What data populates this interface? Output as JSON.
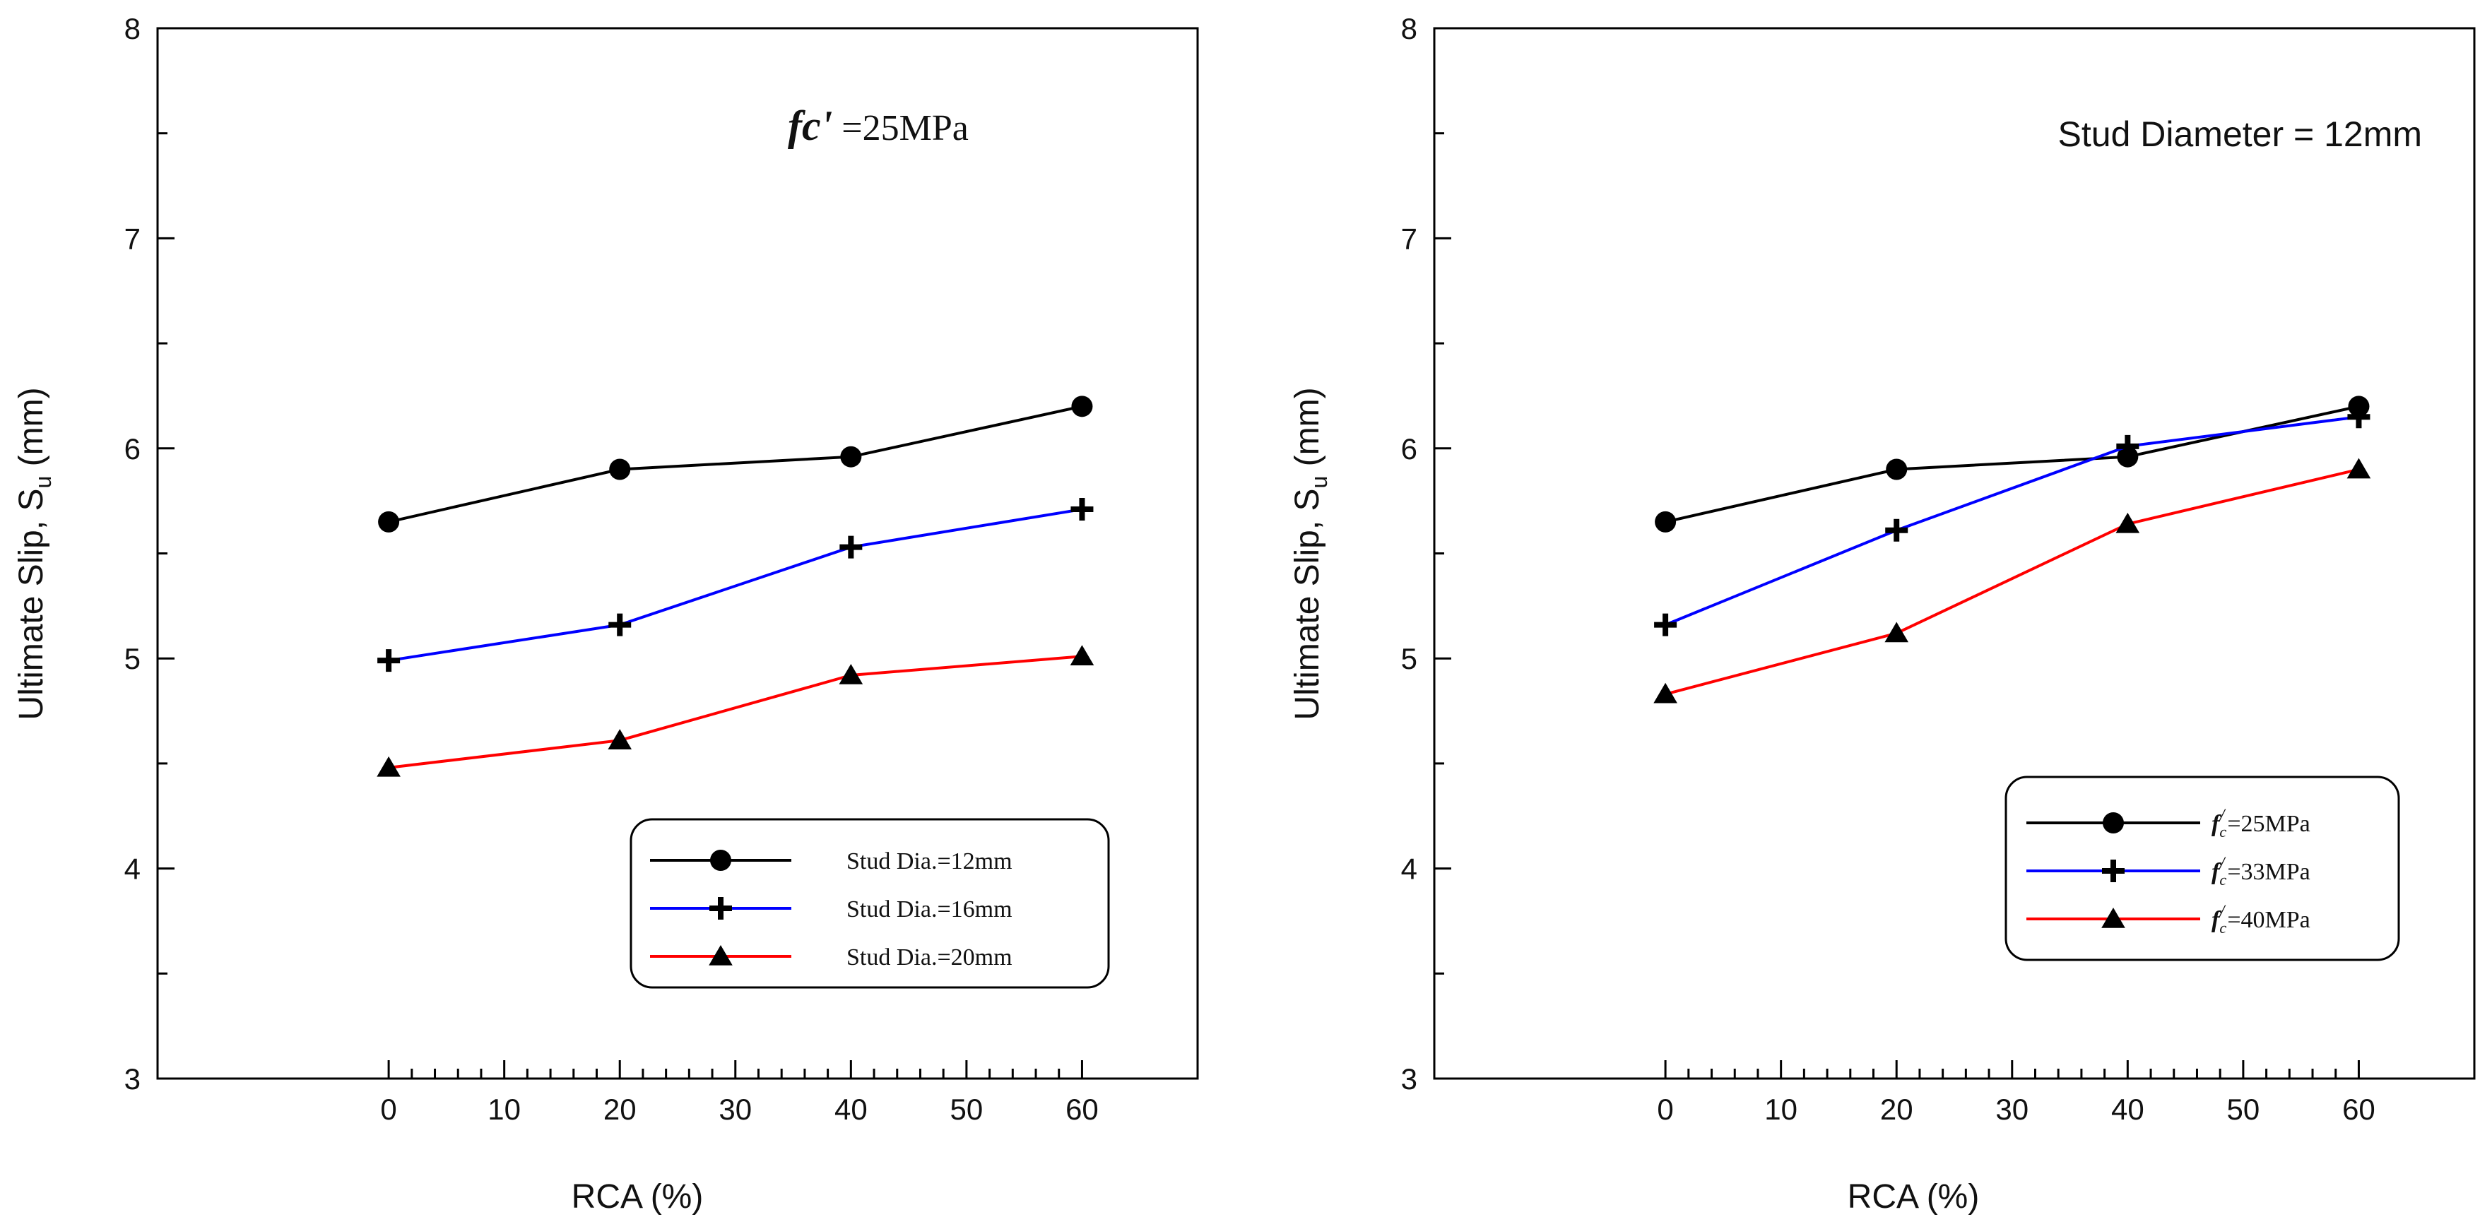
{
  "chart_data": [
    {
      "type": "line",
      "xlabel": "RCA (%)",
      "ylabel_main": "Ultimate Slip, S",
      "ylabel_sub": "u",
      "ylabel_tail": " (mm)",
      "xlim": [
        -20,
        70
      ],
      "ylim": [
        3,
        8
      ],
      "xticks": [
        0,
        10,
        20,
        30,
        40,
        50,
        60
      ],
      "yticks": [
        3,
        4,
        5,
        6,
        7,
        8
      ],
      "x": [
        0,
        20,
        40,
        60
      ],
      "annotation": {
        "italic": "fc'",
        "rest": " =25MPa"
      },
      "legend_style": "plain",
      "series": [
        {
          "name": "Stud Dia.=12mm",
          "color": "#000000",
          "marker": "circle",
          "values": [
            5.65,
            5.9,
            5.96,
            6.2
          ]
        },
        {
          "name": "Stud Dia.=16mm",
          "color": "#0000ff",
          "marker": "plus",
          "values": [
            4.99,
            5.16,
            5.53,
            5.71
          ]
        },
        {
          "name": "Stud Dia.=20mm",
          "color": "#ff0000",
          "marker": "triangle",
          "values": [
            4.48,
            4.61,
            4.92,
            5.01
          ]
        }
      ]
    },
    {
      "type": "line",
      "xlabel": "RCA (%)",
      "ylabel_main": "Ultimate Slip, S",
      "ylabel_sub": "u",
      "ylabel_tail": " (mm)",
      "xlim": [
        -20,
        70
      ],
      "ylim": [
        3,
        8
      ],
      "xticks": [
        0,
        10,
        20,
        30,
        40,
        50,
        60
      ],
      "yticks": [
        3,
        4,
        5,
        6,
        7,
        8
      ],
      "x": [
        0,
        20,
        40,
        60
      ],
      "annotation": {
        "text": "Stud Diameter = 12mm"
      },
      "legend_style": "fc",
      "series": [
        {
          "name": "=25MPa",
          "color": "#000000",
          "marker": "circle",
          "values": [
            5.65,
            5.9,
            5.96,
            6.2
          ]
        },
        {
          "name": "=33MPa",
          "color": "#0000ff",
          "marker": "plus",
          "values": [
            5.16,
            5.61,
            6.01,
            6.15
          ]
        },
        {
          "name": "=40MPa",
          "color": "#ff0000",
          "marker": "triangle",
          "values": [
            4.83,
            5.12,
            5.64,
            5.9
          ]
        }
      ]
    }
  ],
  "legend_prefix": {
    "base": "f",
    "sub": "c",
    "sup": "/"
  }
}
